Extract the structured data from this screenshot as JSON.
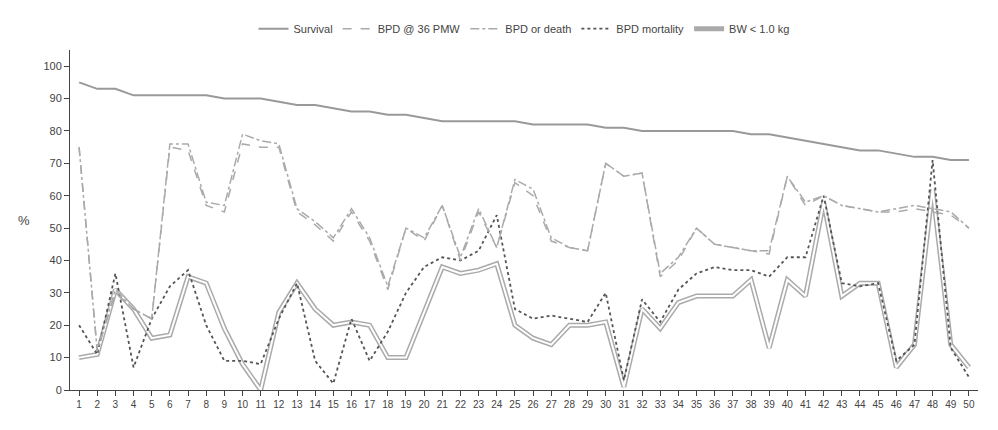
{
  "chart_data": {
    "type": "line",
    "ylabel": "%",
    "x": [
      1,
      2,
      3,
      4,
      5,
      6,
      7,
      8,
      9,
      10,
      11,
      12,
      13,
      14,
      15,
      16,
      17,
      18,
      19,
      20,
      21,
      22,
      23,
      24,
      25,
      26,
      27,
      28,
      29,
      30,
      31,
      32,
      33,
      34,
      35,
      36,
      37,
      38,
      39,
      40,
      41,
      42,
      43,
      44,
      45,
      46,
      47,
      48,
      49,
      50
    ],
    "xlim": [
      0.5,
      50.5
    ],
    "ylim": [
      0,
      105
    ],
    "xticks": [
      1,
      2,
      3,
      4,
      5,
      6,
      7,
      8,
      9,
      10,
      11,
      12,
      13,
      14,
      15,
      16,
      17,
      18,
      19,
      20,
      21,
      22,
      23,
      24,
      25,
      26,
      27,
      28,
      29,
      30,
      31,
      32,
      33,
      34,
      35,
      36,
      37,
      38,
      39,
      40,
      41,
      42,
      43,
      44,
      45,
      46,
      47,
      48,
      49,
      50
    ],
    "yticks": [
      0,
      10,
      20,
      30,
      40,
      50,
      60,
      70,
      80,
      90,
      100
    ],
    "grid": false,
    "legend": "top",
    "series": [
      {
        "name": "Survival",
        "color": "#999999",
        "line_style": "solid",
        "values": [
          95,
          93,
          93,
          91,
          91,
          91,
          91,
          91,
          90,
          90,
          90,
          89,
          88,
          88,
          87,
          86,
          86,
          85,
          85,
          84,
          83,
          83,
          83,
          83,
          83,
          82,
          82,
          82,
          82,
          81,
          81,
          80,
          80,
          80,
          80,
          80,
          80,
          79,
          79,
          78,
          77,
          76,
          75,
          74,
          74,
          73,
          72,
          72,
          71,
          71
        ]
      },
      {
        "name": "BPD @ 36 PMW",
        "color": "#aaaaaa",
        "line_style": "dashed",
        "values": [
          75,
          12,
          30,
          25,
          22,
          75,
          74,
          57,
          55,
          76,
          75,
          75,
          55,
          51,
          46,
          55,
          46,
          31,
          50,
          46,
          57,
          40,
          55,
          44,
          64,
          60,
          46,
          44,
          43,
          70,
          66,
          67,
          35,
          40,
          50,
          45,
          44,
          43,
          42,
          66,
          57,
          60,
          57,
          56,
          55,
          55,
          56,
          55,
          54,
          50
        ]
      },
      {
        "name": "BPD or death",
        "color": "#aaaaaa",
        "line_style": "dashdot",
        "values": [
          75,
          12,
          31,
          25,
          22,
          76,
          76,
          58,
          57,
          79,
          77,
          76,
          56,
          52,
          47,
          56,
          47,
          32,
          50,
          47,
          57,
          41,
          56,
          44,
          65,
          62,
          47,
          44,
          43,
          70,
          66,
          67,
          36,
          41,
          50,
          45,
          44,
          43,
          43,
          66,
          58,
          60,
          57,
          56,
          55,
          56,
          57,
          56,
          55,
          50
        ]
      },
      {
        "name": "BPD mortality",
        "color": "#555555",
        "line_style": "dotted",
        "values": [
          20,
          11,
          36,
          7,
          22,
          32,
          37,
          20,
          9,
          9,
          8,
          22,
          33,
          9,
          2,
          22,
          9,
          18,
          30,
          38,
          41,
          40,
          43,
          54,
          25,
          22,
          23,
          22,
          21,
          30,
          3,
          28,
          21,
          31,
          36,
          38,
          37,
          37,
          35,
          41,
          41,
          60,
          33,
          32,
          33,
          9,
          14,
          71,
          13,
          4
        ]
      },
      {
        "name": "BW < 1.0 kg",
        "color": "#aaaaaa",
        "line_style": "double",
        "values": [
          10,
          11,
          31,
          25,
          16,
          17,
          35,
          33,
          19,
          8,
          0,
          24,
          33,
          25,
          20,
          21,
          20,
          10,
          10,
          24,
          38,
          36,
          37,
          39,
          20,
          16,
          14,
          20,
          20,
          21,
          1,
          25,
          19,
          27,
          29,
          29,
          29,
          34,
          13,
          34,
          29,
          58,
          29,
          33,
          33,
          7,
          14,
          62,
          14,
          7
        ]
      }
    ]
  }
}
